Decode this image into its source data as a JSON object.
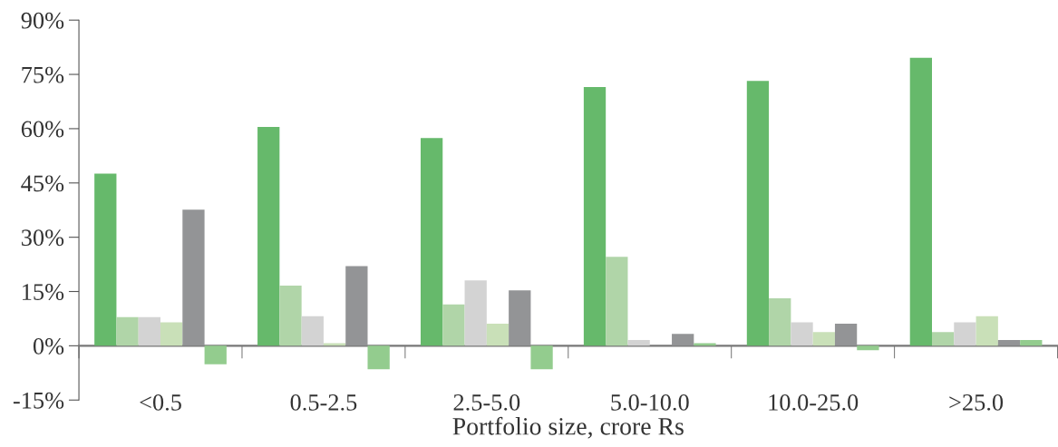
{
  "chart_data": {
    "type": "bar",
    "xlabel": "Portfolio size, crore Rs",
    "categories": [
      "<0.5",
      "0.5-2.5",
      "2.5-5.0",
      "5.0-10.0",
      "10.0-25.0",
      ">25.0"
    ],
    "series": [
      {
        "color": "#66b96b",
        "values": [
          47.6,
          60.5,
          57.4,
          71.5,
          73.2,
          79.6
        ]
      },
      {
        "color": "#b0d5a8",
        "values": [
          7.9,
          16.6,
          11.4,
          24.6,
          13.1,
          3.8
        ]
      },
      {
        "color": "#d3d3d3",
        "values": [
          7.9,
          8.2,
          18.1,
          1.6,
          6.5,
          6.5
        ]
      },
      {
        "color": "#c9e0b8",
        "values": [
          6.5,
          0.7,
          6.1,
          0,
          3.8,
          8.2
        ]
      },
      {
        "color": "#939496",
        "values": [
          37.6,
          22.0,
          15.3,
          3.3,
          6.1,
          1.6
        ]
      },
      {
        "color": "#93cc8e",
        "values": [
          -5.1,
          -6.5,
          -6.5,
          0.7,
          -1.2,
          1.6
        ]
      }
    ],
    "ylim": [
      -15,
      90
    ],
    "yticks": [
      {
        "value": -15,
        "label": "-15%"
      },
      {
        "value": 0,
        "label": "0%"
      },
      {
        "value": 15,
        "label": "15%"
      },
      {
        "value": 30,
        "label": "30%"
      },
      {
        "value": 45,
        "label": "45%"
      },
      {
        "value": 60,
        "label": "60%"
      },
      {
        "value": 75,
        "label": "75%"
      },
      {
        "value": 90,
        "label": "90%"
      }
    ],
    "grid": false
  }
}
